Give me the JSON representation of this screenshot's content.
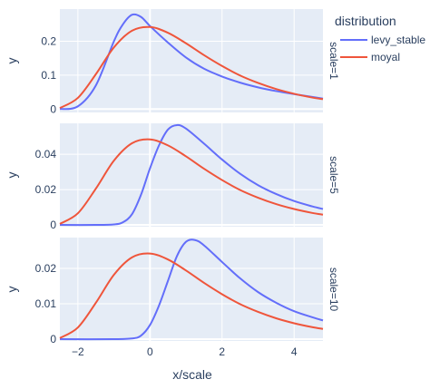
{
  "chart_data": {
    "type": "line",
    "legend": {
      "title": "distribution",
      "position": "top-right",
      "items": [
        {
          "name": "levy_stable",
          "color": "#636efa"
        },
        {
          "name": "moyal",
          "color": "#ef553b"
        }
      ]
    },
    "xlabel": "x/scale",
    "xlim": [
      -2.5,
      4.8
    ],
    "xticks": [
      -2,
      0,
      2,
      4
    ],
    "grid": true,
    "panels": [
      {
        "label": "scale=1",
        "ylabel": "y",
        "ylim": [
          -0.01,
          0.295
        ],
        "yticks": [
          0,
          0.1,
          0.2
        ],
        "ytick_labels": [
          "0",
          "0.1",
          "0.2"
        ],
        "series": [
          {
            "name": "levy_stable",
            "color": "#636efa",
            "x": [
              -2.5,
              -2,
              -1.5,
              -1,
              -0.75,
              -0.5,
              -0.25,
              0,
              0.5,
              1,
              1.5,
              2,
              2.5,
              3,
              3.5,
              4,
              4.5,
              4.8
            ],
            "y": [
              0,
              0.008,
              0.07,
              0.2,
              0.25,
              0.278,
              0.272,
              0.245,
              0.196,
              0.152,
              0.119,
              0.096,
              0.078,
              0.064,
              0.053,
              0.044,
              0.036,
              0.031
            ]
          },
          {
            "name": "moyal",
            "color": "#ef553b",
            "x": [
              -2.5,
              -2,
              -1.5,
              -1,
              -0.5,
              0,
              0.5,
              1,
              1.5,
              2,
              2.5,
              3,
              3.5,
              4,
              4.5,
              4.8
            ],
            "y": [
              0.003,
              0.033,
              0.103,
              0.182,
              0.231,
              0.242,
              0.225,
              0.194,
              0.159,
              0.127,
              0.099,
              0.077,
              0.059,
              0.045,
              0.034,
              0.029
            ]
          }
        ]
      },
      {
        "label": "scale=5",
        "ylabel": "y",
        "ylim": [
          -0.001,
          0.0575
        ],
        "yticks": [
          0,
          0.02,
          0.04
        ],
        "ytick_labels": [
          "0",
          "0.02",
          "0.04"
        ],
        "series": [
          {
            "name": "levy_stable",
            "color": "#636efa",
            "x": [
              -2.5,
              -1.5,
              -1,
              -0.75,
              -0.5,
              -0.25,
              0,
              0.25,
              0.5,
              0.75,
              1,
              1.5,
              2,
              2.5,
              3,
              3.5,
              4,
              4.5,
              4.8
            ],
            "y": [
              0,
              0,
              0.0003,
              0.0015,
              0.006,
              0.017,
              0.032,
              0.045,
              0.054,
              0.0565,
              0.0545,
              0.046,
              0.037,
              0.029,
              0.0225,
              0.0175,
              0.0135,
              0.0105,
              0.009
            ]
          },
          {
            "name": "moyal",
            "color": "#ef553b",
            "x": [
              -2.5,
              -2,
              -1.5,
              -1,
              -0.5,
              0,
              0.5,
              1,
              1.5,
              2,
              2.5,
              3,
              3.5,
              4,
              4.5,
              4.8
            ],
            "y": [
              0.0006,
              0.0066,
              0.0206,
              0.0364,
              0.0462,
              0.0484,
              0.045,
              0.0388,
              0.0318,
              0.0254,
              0.0198,
              0.0154,
              0.0118,
              0.009,
              0.0068,
              0.0058
            ]
          }
        ]
      },
      {
        "label": "scale=10",
        "ylabel": "y",
        "ylim": [
          -0.0005,
          0.0287
        ],
        "yticks": [
          0,
          0.01,
          0.02
        ],
        "ytick_labels": [
          "0",
          "0.01",
          "0.02"
        ],
        "series": [
          {
            "name": "levy_stable",
            "color": "#636efa",
            "x": [
              -2.5,
              -1,
              -0.5,
              -0.25,
              0,
              0.25,
              0.5,
              0.75,
              1,
              1.25,
              1.5,
              2,
              2.5,
              3,
              3.5,
              4,
              4.5,
              4.8
            ],
            "y": [
              0,
              0,
              0.0002,
              0.001,
              0.004,
              0.0095,
              0.0165,
              0.0235,
              0.0275,
              0.028,
              0.0265,
              0.0218,
              0.0172,
              0.0133,
              0.0103,
              0.0079,
              0.0062,
              0.0053
            ]
          },
          {
            "name": "moyal",
            "color": "#ef553b",
            "x": [
              -2.5,
              -2,
              -1.5,
              -1,
              -0.5,
              0,
              0.5,
              1,
              1.5,
              2,
              2.5,
              3,
              3.5,
              4,
              4.5,
              4.8
            ],
            "y": [
              0.0003,
              0.0033,
              0.0103,
              0.0182,
              0.0231,
              0.0242,
              0.0225,
              0.0194,
              0.0159,
              0.0127,
              0.0099,
              0.0077,
              0.0059,
              0.0045,
              0.0034,
              0.0029
            ]
          }
        ]
      }
    ]
  }
}
